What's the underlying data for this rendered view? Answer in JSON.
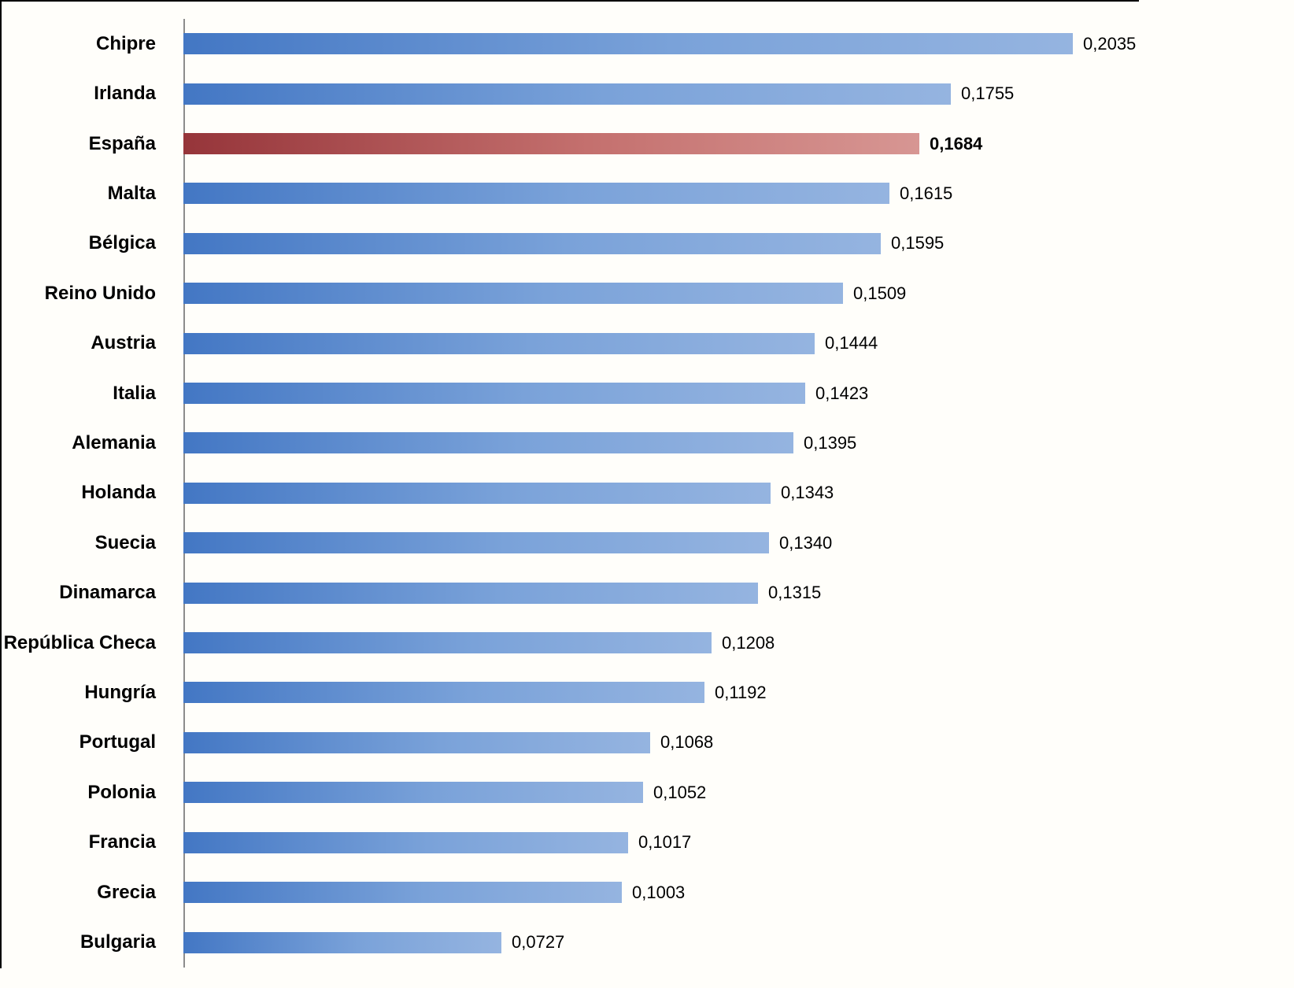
{
  "chart_data": {
    "type": "bar",
    "orientation": "horizontal",
    "title": "",
    "xlabel": "",
    "ylabel": "",
    "grid": false,
    "legend": false,
    "xlim": [
      0,
      0.25
    ],
    "decimal_separator": ",",
    "categories": [
      "Chipre",
      "Irlanda",
      "España",
      "Malta",
      "Bélgica",
      "Reino Unido",
      "Austria",
      "Italia",
      "Alemania",
      "Holanda",
      "Suecia",
      "Dinamarca",
      "República Checa",
      "Hungría",
      "Portugal",
      "Polonia",
      "Francia",
      "Grecia",
      "Bulgaria"
    ],
    "values": [
      0.2035,
      0.1755,
      0.1684,
      0.1615,
      0.1595,
      0.1509,
      0.1444,
      0.1423,
      0.1395,
      0.1343,
      0.134,
      0.1315,
      0.1208,
      0.1192,
      0.1068,
      0.1052,
      0.1017,
      0.1003,
      0.0727
    ],
    "series": [
      {
        "country": "Chipre",
        "value": 0.2035,
        "label": "0,2035",
        "highlight": false
      },
      {
        "country": "Irlanda",
        "value": 0.1755,
        "label": "0,1755",
        "highlight": false
      },
      {
        "country": "España",
        "value": 0.1684,
        "label": "0,1684",
        "highlight": true
      },
      {
        "country": "Malta",
        "value": 0.1615,
        "label": "0,1615",
        "highlight": false
      },
      {
        "country": "Bélgica",
        "value": 0.1595,
        "label": "0,1595",
        "highlight": false
      },
      {
        "country": "Reino Unido",
        "value": 0.1509,
        "label": "0,1509",
        "highlight": false
      },
      {
        "country": "Austria",
        "value": 0.1444,
        "label": "0,1444",
        "highlight": false
      },
      {
        "country": "Italia",
        "value": 0.1423,
        "label": "0,1423",
        "highlight": false
      },
      {
        "country": "Alemania",
        "value": 0.1395,
        "label": "0,1395",
        "highlight": false
      },
      {
        "country": "Holanda",
        "value": 0.1343,
        "label": "0,1343",
        "highlight": false
      },
      {
        "country": "Suecia",
        "value": 0.134,
        "label": "0,1340",
        "highlight": false
      },
      {
        "country": "Dinamarca",
        "value": 0.1315,
        "label": "0,1315",
        "highlight": false
      },
      {
        "country": "República Checa",
        "value": 0.1208,
        "label": "0,1208",
        "highlight": false
      },
      {
        "country": "Hungría",
        "value": 0.1192,
        "label": "0,1192",
        "highlight": false
      },
      {
        "country": "Portugal",
        "value": 0.1068,
        "label": "0,1068",
        "highlight": false
      },
      {
        "country": "Polonia",
        "value": 0.1052,
        "label": "0,1052",
        "highlight": false
      },
      {
        "country": "Francia",
        "value": 0.1017,
        "label": "0,1017",
        "highlight": false
      },
      {
        "country": "Grecia",
        "value": 0.1003,
        "label": "0,1003",
        "highlight": false
      },
      {
        "country": "Bulgaria",
        "value": 0.0727,
        "label": "0,0727",
        "highlight": false
      }
    ],
    "colors": {
      "bar_gradient_start": "#4377c4",
      "bar_gradient_mid": "#7aa2d9",
      "bar_gradient_end": "#95b4e0",
      "highlight_gradient_start": "#96353a",
      "highlight_gradient_mid": "#c4706e",
      "highlight_gradient_end": "#d79693",
      "axis_line": "#8c8c8c",
      "frame": "#000000",
      "text": "#000000"
    }
  }
}
